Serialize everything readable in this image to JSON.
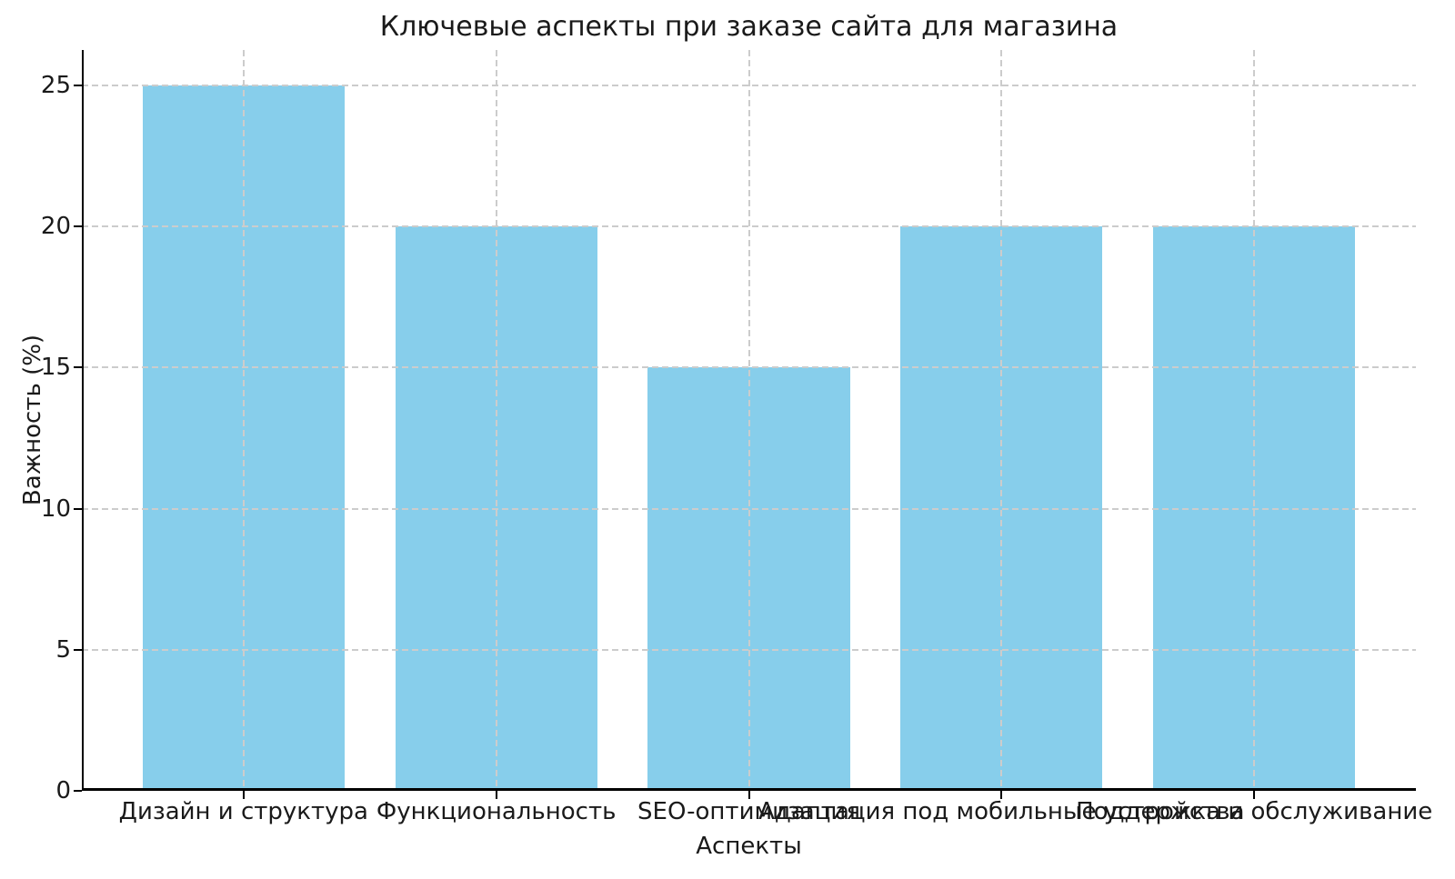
{
  "chart_data": {
    "type": "bar",
    "title": "Ключевые аспекты при заказе сайта для магазина",
    "xlabel": "Аспекты",
    "ylabel": "Важность (%)",
    "categories": [
      "Дизайн и структура",
      "Функциональность",
      "SEO-оптимизация",
      "Адаптация под мобильные устройства",
      "Поддержка и обслуживание"
    ],
    "values": [
      25,
      20,
      15,
      20,
      20
    ],
    "ylim": [
      0,
      26.25
    ],
    "yticks": [
      0,
      5,
      10,
      15,
      20,
      25
    ],
    "bar_color": "#87CEEB",
    "bar_width_fraction": 0.8,
    "grid": "dashed",
    "grid_color": "#cccccc",
    "legend": "none",
    "background": "#ffffff"
  }
}
